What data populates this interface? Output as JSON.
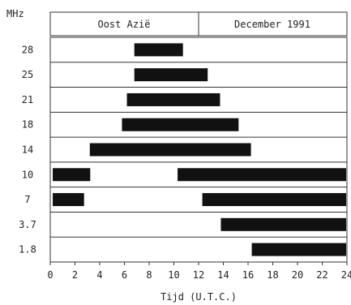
{
  "chart_data": {
    "type": "bar",
    "orientation": "horizontal-range",
    "unit_label": "MHz",
    "header": {
      "region": "Oost Azië",
      "date": "December 1991"
    },
    "xlabel": "Tijd (U.T.C.)",
    "xlim": [
      0,
      24
    ],
    "xticks": [
      "0",
      "2",
      "4",
      "6",
      "8",
      "10",
      "12",
      "14",
      "16",
      "18",
      "20",
      "22",
      "24"
    ],
    "bands": [
      {
        "label": "28",
        "segments": [
          [
            6.8,
            10.8
          ]
        ]
      },
      {
        "label": "25",
        "segments": [
          [
            6.8,
            12.8
          ]
        ]
      },
      {
        "label": "21",
        "segments": [
          [
            6.2,
            13.8
          ]
        ]
      },
      {
        "label": "18",
        "segments": [
          [
            5.8,
            15.3
          ]
        ]
      },
      {
        "label": "14",
        "segments": [
          [
            3.2,
            16.3
          ]
        ]
      },
      {
        "label": "10",
        "segments": [
          [
            0.2,
            3.3
          ],
          [
            10.3,
            24
          ]
        ]
      },
      {
        "label": "7",
        "segments": [
          [
            0.2,
            2.8
          ],
          [
            12.3,
            24
          ]
        ]
      },
      {
        "label": "3.7",
        "segments": [
          [
            13.8,
            24
          ]
        ]
      },
      {
        "label": "1.8",
        "segments": [
          [
            16.3,
            24
          ]
        ]
      }
    ],
    "bar_color": "#111111",
    "grid": false
  }
}
